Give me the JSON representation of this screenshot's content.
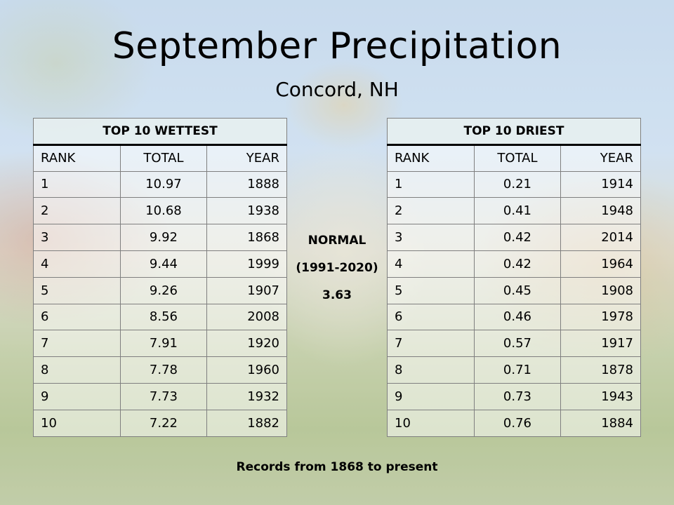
{
  "title": "September Precipitation",
  "subtitle": "Concord, NH",
  "wettest": {
    "heading": "TOP 10 WETTEST",
    "columns": [
      "RANK",
      "TOTAL",
      "YEAR"
    ],
    "rows": [
      [
        "1",
        "10.97",
        "1888"
      ],
      [
        "2",
        "10.68",
        "1938"
      ],
      [
        "3",
        "9.92",
        "1868"
      ],
      [
        "4",
        "9.44",
        "1999"
      ],
      [
        "5",
        "9.26",
        "1907"
      ],
      [
        "6",
        "8.56",
        "2008"
      ],
      [
        "7",
        "7.91",
        "1920"
      ],
      [
        "8",
        "7.78",
        "1960"
      ],
      [
        "9",
        "7.73",
        "1932"
      ],
      [
        "10",
        "7.22",
        "1882"
      ]
    ]
  },
  "driest": {
    "heading": "TOP 10 DRIEST",
    "columns": [
      "RANK",
      "TOTAL",
      "YEAR"
    ],
    "rows": [
      [
        "1",
        "0.21",
        "1914"
      ],
      [
        "2",
        "0.41",
        "1948"
      ],
      [
        "3",
        "0.42",
        "2014"
      ],
      [
        "4",
        "0.42",
        "1964"
      ],
      [
        "5",
        "0.45",
        "1908"
      ],
      [
        "6",
        "0.46",
        "1978"
      ],
      [
        "7",
        "0.57",
        "1917"
      ],
      [
        "8",
        "0.71",
        "1878"
      ],
      [
        "9",
        "0.73",
        "1943"
      ],
      [
        "10",
        "0.76",
        "1884"
      ]
    ]
  },
  "normal": {
    "label": "NORMAL",
    "period": "(1991-2020)",
    "value": "3.63"
  },
  "footer": "Records from 1868 to present"
}
